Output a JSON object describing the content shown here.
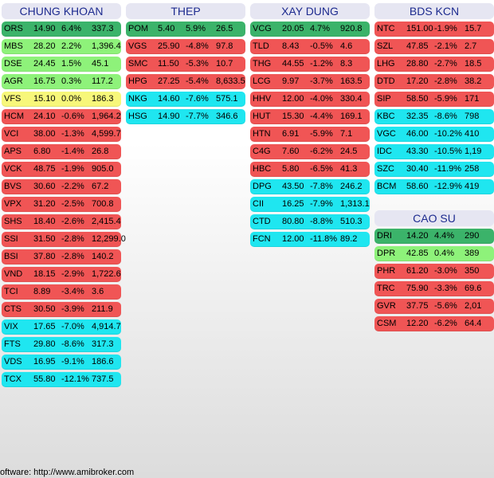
{
  "colors": {
    "dark_green": "#3bb36a",
    "light_green": "#8ef27a",
    "yellow": "#f7f77a",
    "red": "#f05555",
    "cyan": "#1fe6f0",
    "header_bg": "#e6e6f2",
    "header_text": "#1d2b8f"
  },
  "groups": [
    {
      "title": "CHUNG KHOAN",
      "rows": [
        {
          "ticker": "ORS",
          "price": "14.90",
          "change": "6.4%",
          "volume": "337.3",
          "color": "dark_green"
        },
        {
          "ticker": "MBS",
          "price": "28.20",
          "change": "2.2%",
          "volume": "1,396.4",
          "color": "light_green"
        },
        {
          "ticker": "DSE",
          "price": "24.45",
          "change": "1.5%",
          "volume": "45.1",
          "color": "light_green"
        },
        {
          "ticker": "AGR",
          "price": "16.75",
          "change": "0.3%",
          "volume": "117.2",
          "color": "light_green"
        },
        {
          "ticker": "VFS",
          "price": "15.10",
          "change": "0.0%",
          "volume": "186.3",
          "color": "yellow"
        },
        {
          "ticker": "HCM",
          "price": "24.10",
          "change": "-0.6%",
          "volume": "1,964.2",
          "color": "red"
        },
        {
          "ticker": "VCI",
          "price": "38.00",
          "change": "-1.3%",
          "volume": "4,599.7",
          "color": "red"
        },
        {
          "ticker": "APS",
          "price": "6.80",
          "change": "-1.4%",
          "volume": "26.8",
          "color": "red"
        },
        {
          "ticker": "VCK",
          "price": "48.75",
          "change": "-1.9%",
          "volume": "905.0",
          "color": "red"
        },
        {
          "ticker": "BVS",
          "price": "30.60",
          "change": "-2.2%",
          "volume": "67.2",
          "color": "red"
        },
        {
          "ticker": "VPX",
          "price": "31.20",
          "change": "-2.5%",
          "volume": "700.8",
          "color": "red"
        },
        {
          "ticker": "SHS",
          "price": "18.40",
          "change": "-2.6%",
          "volume": "2,415.4",
          "color": "red"
        },
        {
          "ticker": "SSI",
          "price": "31.50",
          "change": "-2.8%",
          "volume": "12,299.0",
          "color": "red"
        },
        {
          "ticker": "BSI",
          "price": "37.80",
          "change": "-2.8%",
          "volume": "140.2",
          "color": "red"
        },
        {
          "ticker": "VND",
          "price": "18.15",
          "change": "-2.9%",
          "volume": "1,722.6",
          "color": "red"
        },
        {
          "ticker": "TCI",
          "price": "8.89",
          "change": "-3.4%",
          "volume": "3.6",
          "color": "red"
        },
        {
          "ticker": "CTS",
          "price": "30.50",
          "change": "-3.9%",
          "volume": "211.9",
          "color": "red"
        },
        {
          "ticker": "VIX",
          "price": "17.65",
          "change": "-7.0%",
          "volume": "4,914.7",
          "color": "cyan"
        },
        {
          "ticker": "FTS",
          "price": "29.80",
          "change": "-8.6%",
          "volume": "317.3",
          "color": "cyan"
        },
        {
          "ticker": "VDS",
          "price": "16.95",
          "change": "-9.1%",
          "volume": "186.6",
          "color": "cyan"
        },
        {
          "ticker": "TCX",
          "price": "55.80",
          "change": "-12.1%",
          "volume": "737.5",
          "color": "cyan"
        }
      ]
    },
    {
      "title": "THEP",
      "rows": [
        {
          "ticker": "POM",
          "price": "5.40",
          "change": "5.9%",
          "volume": "26.5",
          "color": "dark_green"
        },
        {
          "ticker": "VGS",
          "price": "25.90",
          "change": "-4.8%",
          "volume": "97.8",
          "color": "red"
        },
        {
          "ticker": "SMC",
          "price": "11.50",
          "change": "-5.3%",
          "volume": "10.7",
          "color": "red"
        },
        {
          "ticker": "HPG",
          "price": "27.25",
          "change": "-5.4%",
          "volume": "8,633.5",
          "color": "red"
        },
        {
          "ticker": "NKG",
          "price": "14.60",
          "change": "-7.6%",
          "volume": "575.1",
          "color": "cyan"
        },
        {
          "ticker": "HSG",
          "price": "14.90",
          "change": "-7.7%",
          "volume": "346.6",
          "color": "cyan"
        }
      ]
    },
    {
      "title": "XAY DUNG",
      "rows": [
        {
          "ticker": "VCG",
          "price": "20.05",
          "change": "4.7%",
          "volume": "920.8",
          "color": "dark_green"
        },
        {
          "ticker": "TLD",
          "price": "8.43",
          "change": "-0.5%",
          "volume": "4.6",
          "color": "red"
        },
        {
          "ticker": "THG",
          "price": "44.55",
          "change": "-1.2%",
          "volume": "8.3",
          "color": "red"
        },
        {
          "ticker": "LCG",
          "price": "9.97",
          "change": "-3.7%",
          "volume": "163.5",
          "color": "red"
        },
        {
          "ticker": "HHV",
          "price": "12.00",
          "change": "-4.0%",
          "volume": "330.4",
          "color": "red"
        },
        {
          "ticker": "HUT",
          "price": "15.30",
          "change": "-4.4%",
          "volume": "169.1",
          "color": "red"
        },
        {
          "ticker": "HTN",
          "price": "6.91",
          "change": "-5.9%",
          "volume": "7.1",
          "color": "red"
        },
        {
          "ticker": "C4G",
          "price": "7.60",
          "change": "-6.2%",
          "volume": "24.5",
          "color": "red"
        },
        {
          "ticker": "HBC",
          "price": "5.80",
          "change": "-6.5%",
          "volume": "41.3",
          "color": "red"
        },
        {
          "ticker": "DPG",
          "price": "43.50",
          "change": "-7.8%",
          "volume": "246.2",
          "color": "cyan"
        },
        {
          "ticker": "CII",
          "price": "16.25",
          "change": "-7.9%",
          "volume": "1,313.1",
          "color": "cyan"
        },
        {
          "ticker": "CTD",
          "price": "80.80",
          "change": "-8.8%",
          "volume": "510.3",
          "color": "cyan"
        },
        {
          "ticker": "FCN",
          "price": "12.00",
          "change": "-11.8%",
          "volume": "89.2",
          "color": "cyan"
        }
      ]
    },
    {
      "title": "BDS KCN",
      "rows": [
        {
          "ticker": "NTC",
          "price": "151.00",
          "change": "-1.9%",
          "volume": "15.7",
          "color": "red"
        },
        {
          "ticker": "SZL",
          "price": "47.85",
          "change": "-2.1%",
          "volume": "2.7",
          "color": "red"
        },
        {
          "ticker": "LHG",
          "price": "28.80",
          "change": "-2.7%",
          "volume": "18.5",
          "color": "red"
        },
        {
          "ticker": "DTD",
          "price": "17.20",
          "change": "-2.8%",
          "volume": "38.2",
          "color": "red"
        },
        {
          "ticker": "SIP",
          "price": "58.50",
          "change": "-5.9%",
          "volume": "171",
          "color": "red"
        },
        {
          "ticker": "KBC",
          "price": "32.35",
          "change": "-8.6%",
          "volume": "798",
          "color": "cyan"
        },
        {
          "ticker": "VGC",
          "price": "46.00",
          "change": "-10.2%",
          "volume": "410",
          "color": "cyan"
        },
        {
          "ticker": "IDC",
          "price": "43.30",
          "change": "-10.5%",
          "volume": "1,19",
          "color": "cyan"
        },
        {
          "ticker": "SZC",
          "price": "30.40",
          "change": "-11.9%",
          "volume": "258",
          "color": "cyan"
        },
        {
          "ticker": "BCM",
          "price": "58.60",
          "change": "-12.9%",
          "volume": "419",
          "color": "cyan"
        }
      ]
    },
    {
      "title": "CAO SU",
      "rows": [
        {
          "ticker": "DRI",
          "price": "14.20",
          "change": "4.4%",
          "volume": "290",
          "color": "dark_green"
        },
        {
          "ticker": "DPR",
          "price": "42.85",
          "change": "0.4%",
          "volume": "389",
          "color": "light_green"
        },
        {
          "ticker": "PHR",
          "price": "61.20",
          "change": "-3.0%",
          "volume": "350",
          "color": "red"
        },
        {
          "ticker": "TRC",
          "price": "75.90",
          "change": "-3.3%",
          "volume": "69.6",
          "color": "red"
        },
        {
          "ticker": "GVR",
          "price": "37.75",
          "change": "-5.6%",
          "volume": "2,01",
          "color": "red"
        },
        {
          "ticker": "CSM",
          "price": "12.20",
          "change": "-6.2%",
          "volume": "64.4",
          "color": "red"
        }
      ]
    }
  ],
  "footer": {
    "text": "oftware: http://www.amibroker.com"
  }
}
